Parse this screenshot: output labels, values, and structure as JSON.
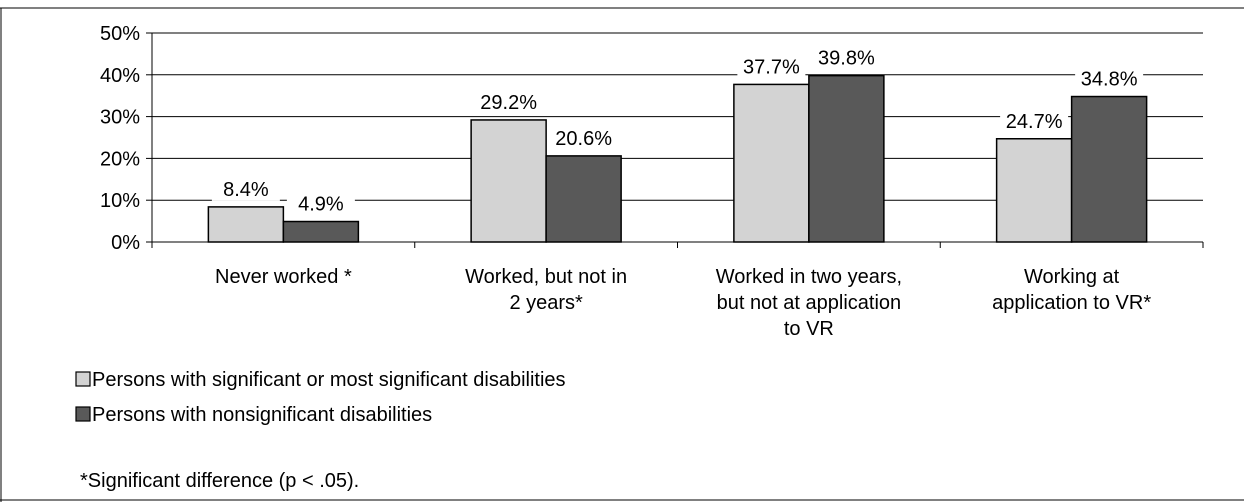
{
  "chart_data": {
    "type": "bar",
    "title": "",
    "xlabel": "",
    "ylabel": "",
    "ylim": [
      0,
      50
    ],
    "yticks": [
      0,
      10,
      20,
      30,
      40,
      50
    ],
    "ytick_format": "percent",
    "grid": true,
    "legend_position": "bottom-left",
    "categories": [
      [
        "Never worked *"
      ],
      [
        "Worked, but not in",
        "2 years*"
      ],
      [
        "Worked in two years,",
        "but not at application",
        "to VR"
      ],
      [
        "Working at",
        "application to VR*"
      ]
    ],
    "series": [
      {
        "name": "Persons with significant or most significant disabilities",
        "color": "#d3d3d3",
        "values": [
          8.4,
          29.2,
          37.7,
          24.7
        ],
        "labels": [
          "8.4%",
          "29.2%",
          "37.7%",
          "24.7%"
        ]
      },
      {
        "name": "Persons with nonsignificant disabilities",
        "color": "#595959",
        "values": [
          4.9,
          20.6,
          39.8,
          34.8
        ],
        "labels": [
          "4.9%",
          "20.6%",
          "39.8%",
          "34.8%"
        ]
      }
    ],
    "footnote": "*Significant difference (p < .05)."
  }
}
